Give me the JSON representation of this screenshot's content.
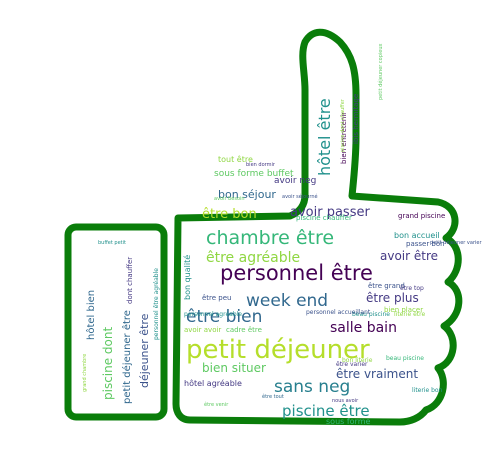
{
  "colors": {
    "outline": "#0a7d0a",
    "palette": [
      "#440154",
      "#3b528b",
      "#21918c",
      "#5ec962",
      "#b5de2b",
      "#31688e",
      "#35b779",
      "#90d743",
      "#443983",
      "#277f8e"
    ]
  },
  "words": [
    {
      "text": "petit déjeuner",
      "color": "#b5de2b"
    },
    {
      "text": "personnel être",
      "color": "#440154"
    },
    {
      "text": "chambre être",
      "color": "#35b779"
    },
    {
      "text": "être bien",
      "color": "#31688e"
    },
    {
      "text": "week end",
      "color": "#31688e"
    },
    {
      "text": "sans neg",
      "color": "#277f8e"
    },
    {
      "text": "piscine être",
      "color": "#21918c"
    },
    {
      "text": "salle bain",
      "color": "#440154"
    },
    {
      "text": "hôtel être",
      "color": "#21918c"
    },
    {
      "text": "avoir passer",
      "color": "#443983"
    },
    {
      "text": "être agréable",
      "color": "#90d743"
    },
    {
      "text": "avoir être",
      "color": "#443983"
    },
    {
      "text": "être bon",
      "color": "#b5de2b"
    },
    {
      "text": "bon séjour",
      "color": "#31688e"
    },
    {
      "text": "bien situer",
      "color": "#5ec962"
    },
    {
      "text": "être vraiment",
      "color": "#3b528b"
    },
    {
      "text": "être plus",
      "color": "#443983"
    },
    {
      "text": "piscine dont",
      "color": "#5ec962"
    },
    {
      "text": "petit déjeuner être",
      "color": "#31688e"
    },
    {
      "text": "déjeuner être",
      "color": "#3b528b"
    },
    {
      "text": "hôtel bien",
      "color": "#31688e"
    },
    {
      "text": "sous forme buffet",
      "color": "#5ec962"
    },
    {
      "text": "avoir neg",
      "color": "#443983"
    },
    {
      "text": "bon accueil",
      "color": "#21918c"
    },
    {
      "text": "passer bon",
      "color": "#3b528b"
    },
    {
      "text": "grand piscine",
      "color": "#440154"
    },
    {
      "text": "bien entretenir",
      "color": "#440154"
    },
    {
      "text": "hôtel agréable",
      "color": "#443983"
    },
    {
      "text": "tout être",
      "color": "#90d743"
    },
    {
      "text": "bon qualité",
      "color": "#21918c"
    },
    {
      "text": "sous forme",
      "color": "#35b779"
    },
    {
      "text": "être grand",
      "color": "#3b528b"
    },
    {
      "text": "bien placer",
      "color": "#90d743"
    },
    {
      "text": "être top",
      "color": "#443983"
    },
    {
      "text": "piscine chauffer",
      "color": "#35b779"
    },
    {
      "text": "beau piscine",
      "color": "#21918c"
    },
    {
      "text": "être peu",
      "color": "#3b528b"
    },
    {
      "text": "avoir avoir",
      "color": "#90d743"
    },
    {
      "text": "cadre être",
      "color": "#5ec962"
    },
    {
      "text": "literie être",
      "color": "#90d743"
    },
    {
      "text": "dont chauffer",
      "color": "#443983"
    },
    {
      "text": "personnel être agréable",
      "color": "#21918c"
    },
    {
      "text": "personnel accueillant",
      "color": "#3b528b"
    },
    {
      "text": "ibis hermitage",
      "color": "#443983"
    },
    {
      "text": "petit déjeuner copieux",
      "color": "#5ec962"
    },
    {
      "text": "avoir séjourné",
      "color": "#3b528b"
    },
    {
      "text": "bon literie",
      "color": "#90d743"
    },
    {
      "text": "être varier",
      "color": "#443983"
    },
    {
      "text": "beau piscine",
      "color": "#35b779"
    },
    {
      "text": "literie bon",
      "color": "#21918c"
    },
    {
      "text": "petit déjeuner varier",
      "color": "#3b528b"
    },
    {
      "text": "piscine dont chauffer",
      "color": "#90d743"
    },
    {
      "text": "bien dormir",
      "color": "#443983"
    },
    {
      "text": "avoir besoin",
      "color": "#5ec962"
    },
    {
      "text": "buffet petit",
      "color": "#21918c"
    },
    {
      "text": "être venir",
      "color": "#5ec962"
    },
    {
      "text": "personnel agréable",
      "color": "#21918c"
    },
    {
      "text": "nous avoir",
      "color": "#443983"
    },
    {
      "text": "être tout",
      "color": "#31688e"
    },
    {
      "text": "grand chambre",
      "color": "#90d743"
    }
  ]
}
